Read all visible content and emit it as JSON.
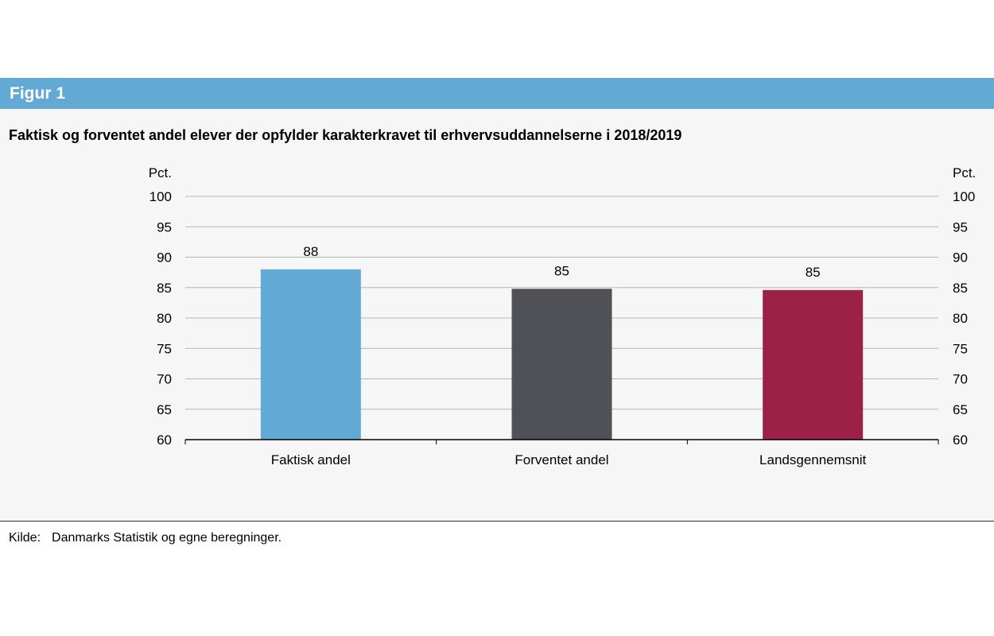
{
  "figure_label": "Figur 1",
  "source": {
    "label": "Kilde:",
    "text": "Danmarks Statistik og egne beregninger."
  },
  "chart_data": {
    "type": "bar",
    "title": "Faktisk og forventet andel elever der opfylder karakterkravet til erhvervsuddannelserne i 2018/2019",
    "ylabel_left": "Pct.",
    "ylabel_right": "Pct.",
    "categories": [
      "Faktisk andel",
      "Forventet andel",
      "Landsgennemsnit"
    ],
    "values": [
      88.0,
      84.8,
      84.6
    ],
    "data_labels": [
      "88",
      "85",
      "85"
    ],
    "colors": [
      "#63a9d5",
      "#505156",
      "#9b2246"
    ],
    "ylim": [
      60,
      100
    ],
    "yticks": [
      60,
      65,
      70,
      75,
      80,
      85,
      90,
      95,
      100
    ],
    "grid": true
  }
}
